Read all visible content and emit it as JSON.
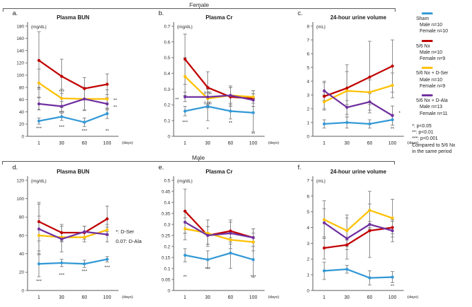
{
  "figure": {
    "female_header": "Female",
    "male_header": "Male"
  },
  "side_note": {
    "line1": "*: D-Ser",
    "line2": "0.07: D-Ala"
  },
  "legend": {
    "groups": [
      {
        "name": "Sham",
        "color": "#3399D6",
        "male": "Male n=10",
        "female": "Female n=10"
      },
      {
        "name": "5/6 Nx",
        "color": "#C00000",
        "male": "Male n=10",
        "female": "Female n=9"
      },
      {
        "name": "5/6 Nx + D-Ser",
        "color": "#FFC000",
        "male": "Male n=10",
        "female": "Female n=9"
      },
      {
        "name": "5/6 Nx + D-Ala",
        "color": "#7030A0",
        "male": "Male n=13",
        "female": "Female n=11"
      }
    ],
    "footnotes": [
      "*: p<0.05",
      "**: p<0.01",
      "***: p<0.001",
      "Compared to 5/6 Nx",
      "in the same period"
    ]
  },
  "chart_data": [
    {
      "id": "a",
      "panel_label": "a.",
      "type": "line",
      "group": "Female",
      "title": "Plasma BUN",
      "unit": "(mg/dL)",
      "xlabel": "(days)",
      "categories": [
        "1",
        "30",
        "60",
        "100"
      ],
      "ylim": [
        0,
        180
      ],
      "ystep": 20,
      "series": [
        {
          "name": "5/6 Nx",
          "color": "#C00000",
          "values": [
            124,
            98,
            78,
            85
          ],
          "errors": [
            47,
            28,
            18,
            17
          ]
        },
        {
          "name": "5/6 Nx + D-Ser",
          "color": "#FFC000",
          "values": [
            87,
            62,
            61,
            61
          ],
          "errors": [
            23,
            15,
            18,
            15
          ]
        },
        {
          "name": "5/6 Nx + D-Ala",
          "color": "#7030A0",
          "values": [
            53,
            49,
            61,
            53
          ],
          "errors": [
            10,
            8,
            19,
            10
          ]
        },
        {
          "name": "Sham",
          "color": "#3399D6",
          "values": [
            25,
            32,
            23,
            37
          ],
          "errors": [
            5,
            6,
            7,
            8
          ]
        }
      ],
      "annotations": [
        {
          "x": 0,
          "y": 78,
          "text": "**"
        },
        {
          "x": 0,
          "y": 43,
          "text": "*"
        },
        {
          "x": 0,
          "y": 13,
          "text": "***"
        },
        {
          "x": 1,
          "y": 73,
          "text": "***"
        },
        {
          "x": 1,
          "y": 38,
          "text": "***"
        },
        {
          "x": 1,
          "y": 15,
          "text": "***"
        },
        {
          "x": 2,
          "y": 9,
          "text": "***"
        },
        {
          "x": 3,
          "y": 9,
          "text": "**"
        },
        {
          "x": 3,
          "y": 59,
          "text": "**",
          "dx": 9,
          "anchor": "start"
        },
        {
          "x": 3,
          "y": 48,
          "text": "**",
          "dx": 9,
          "anchor": "start"
        }
      ]
    },
    {
      "id": "b",
      "panel_label": "b.",
      "type": "line",
      "group": "Female",
      "title": "Plasma Cr",
      "unit": "(mg/dL)",
      "xlabel": "(days)",
      "categories": [
        "1",
        "30",
        "60",
        "100"
      ],
      "ylim": [
        0,
        0.7
      ],
      "ystep": 0.1,
      "series": [
        {
          "name": "5/6 Nx",
          "color": "#C00000",
          "values": [
            0.49,
            0.31,
            0.25,
            0.24
          ],
          "errors": [
            0.16,
            0.1,
            0.06,
            0.05
          ]
        },
        {
          "name": "5/6 Nx + D-Ser",
          "color": "#FFC000",
          "values": [
            0.38,
            0.24,
            0.26,
            0.25
          ],
          "errors": [
            0.12,
            0.06,
            0.06,
            0.04
          ]
        },
        {
          "name": "5/6 Nx + D-Ala",
          "color": "#7030A0",
          "values": [
            0.25,
            0.25,
            0.26,
            0.23
          ],
          "errors": [
            0.03,
            0.05,
            0.05,
            0.04
          ]
        },
        {
          "name": "Sham",
          "color": "#3399D6",
          "values": [
            0.16,
            0.19,
            0.16,
            0.15
          ],
          "errors": [
            0.03,
            0.09,
            0.05,
            0.12
          ]
        }
      ],
      "annotations": [
        {
          "x": 0,
          "y": 0.235,
          "text": "**",
          "dx": -9,
          "anchor": "end"
        },
        {
          "x": 0,
          "y": 0.09,
          "text": "***"
        },
        {
          "x": 1,
          "y": 0.275,
          "text": "0.06",
          "small": true
        },
        {
          "x": 1,
          "y": 0.213,
          "text": "0.06",
          "small": true
        },
        {
          "x": 1,
          "y": 0.045,
          "text": "*"
        },
        {
          "x": 2,
          "y": 0.085,
          "text": "**"
        },
        {
          "x": 3,
          "y": 0.015,
          "text": "**"
        }
      ]
    },
    {
      "id": "c",
      "panel_label": "c.",
      "type": "line",
      "group": "Female",
      "title": "24-hour urine volume",
      "unit": "(mL)",
      "xlabel": "(days)",
      "categories": [
        "1",
        "30",
        "60",
        "100"
      ],
      "ylim": [
        0,
        8
      ],
      "ystep": 1,
      "series": [
        {
          "name": "5/6 Nx",
          "color": "#C00000",
          "values": [
            2.9,
            3.5,
            4.3,
            5.1
          ],
          "errors": [
            1.0,
            1.2,
            2.6,
            1.9
          ]
        },
        {
          "name": "5/6 Nx + D-Ser",
          "color": "#FFC000",
          "values": [
            2.5,
            3.3,
            3.2,
            3.7
          ],
          "errors": [
            0.5,
            1.9,
            0.9,
            0.9
          ]
        },
        {
          "name": "5/6 Nx + D-Ala",
          "color": "#7030A0",
          "values": [
            3.3,
            2.1,
            2.5,
            1.5
          ],
          "errors": [
            0.7,
            0.5,
            0.6,
            0.7
          ]
        },
        {
          "name": "Sham",
          "color": "#3399D6",
          "values": [
            0.9,
            1.0,
            0.9,
            1.2
          ],
          "errors": [
            0.3,
            0.4,
            0.3,
            0.4
          ]
        }
      ],
      "annotations": [
        {
          "x": 3,
          "y": 1.7,
          "text": "*",
          "dx": 9,
          "anchor": "start"
        },
        {
          "x": 3,
          "y": 0.55,
          "text": "**"
        }
      ]
    },
    {
      "id": "d",
      "panel_label": "d.",
      "type": "line",
      "group": "Male",
      "title": "Plasma BUN",
      "unit": "(mg/dL)",
      "xlabel": "(days)",
      "categories": [
        "1",
        "30",
        "60",
        "100"
      ],
      "ylim": [
        0,
        120
      ],
      "ystep": 20,
      "series": [
        {
          "name": "5/6 Nx",
          "color": "#C00000",
          "values": [
            75,
            63,
            63,
            78
          ],
          "errors": [
            21,
            9,
            7,
            14
          ]
        },
        {
          "name": "5/6 Nx + D-Ser",
          "color": "#FFC000",
          "values": [
            60,
            58,
            58,
            66
          ],
          "errors": [
            21,
            5,
            5,
            6
          ]
        },
        {
          "name": "5/6 Nx + D-Ala",
          "color": "#7030A0",
          "values": [
            67,
            56,
            64,
            61
          ],
          "errors": [
            27,
            14,
            6,
            8
          ]
        },
        {
          "name": "Sham",
          "color": "#3399D6",
          "values": [
            29,
            30,
            29,
            34
          ],
          "errors": [
            14,
            4,
            4,
            3
          ]
        }
      ],
      "annotations": [
        {
          "x": 0,
          "y": 10,
          "text": "***"
        },
        {
          "x": 1,
          "y": 17,
          "text": "***"
        },
        {
          "x": 2,
          "y": 21,
          "text": "***"
        },
        {
          "x": 3,
          "y": 25,
          "text": "***"
        }
      ]
    },
    {
      "id": "e",
      "panel_label": "e.",
      "type": "line",
      "group": "Male",
      "title": "Plasma Cr",
      "unit": "(mg/dL)",
      "xlabel": "(days)",
      "categories": [
        "1",
        "30",
        "60",
        "100"
      ],
      "ylim": [
        0,
        0.5
      ],
      "ystep": 0.05,
      "series": [
        {
          "name": "5/6 Nx",
          "color": "#C00000",
          "values": [
            0.36,
            0.25,
            0.27,
            0.24
          ],
          "errors": [
            0.1,
            0.04,
            0.05,
            0.04
          ]
        },
        {
          "name": "5/6 Nx + D-Ser",
          "color": "#FFC000",
          "values": [
            0.28,
            0.26,
            0.23,
            0.22
          ],
          "errors": [
            0.05,
            0.06,
            0.04,
            0.04
          ]
        },
        {
          "name": "5/6 Nx + D-Ala",
          "color": "#7030A0",
          "values": [
            0.31,
            0.25,
            0.26,
            0.24
          ],
          "errors": [
            0.05,
            0.04,
            0.05,
            0.04
          ]
        },
        {
          "name": "Sham",
          "color": "#3399D6",
          "values": [
            0.16,
            0.14,
            0.17,
            0.14
          ],
          "errors": [
            0.03,
            0.04,
            0.07,
            0.08
          ]
        }
      ],
      "annotations": [
        {
          "x": 0,
          "y": 0.062,
          "text": "**"
        },
        {
          "x": 1,
          "y": 0.098,
          "text": "***"
        },
        {
          "x": 3,
          "y": 0.062,
          "text": "***"
        }
      ]
    },
    {
      "id": "f",
      "panel_label": "f.",
      "type": "line",
      "group": "Male",
      "title": "24-hour urine volume",
      "unit": "(mL)",
      "xlabel": "(days)",
      "categories": [
        "1",
        "30",
        "60",
        "100"
      ],
      "ylim": [
        0,
        7
      ],
      "ystep": 1,
      "series": [
        {
          "name": "5/6 Nx",
          "color": "#C00000",
          "values": [
            2.7,
            2.9,
            3.8,
            4.0
          ],
          "errors": [
            0.7,
            0.3,
            1.7,
            0.4
          ]
        },
        {
          "name": "5/6 Nx + D-Ser",
          "color": "#FFC000",
          "values": [
            4.5,
            3.8,
            5.1,
            4.6
          ],
          "errors": [
            1.2,
            1.0,
            1.2,
            1.2
          ]
        },
        {
          "name": "5/6 Nx + D-Ala",
          "color": "#7030A0",
          "values": [
            4.3,
            3.3,
            4.2,
            3.8
          ],
          "errors": [
            0.9,
            1.3,
            0.2,
            0.7
          ]
        },
        {
          "name": "Sham",
          "color": "#3399D6",
          "values": [
            1.25,
            1.35,
            0.8,
            0.85
          ],
          "errors": [
            0.55,
            0.25,
            0.45,
            0.35
          ]
        }
      ],
      "annotations": [
        {
          "x": 3,
          "y": 0.28,
          "text": "**"
        }
      ]
    }
  ]
}
